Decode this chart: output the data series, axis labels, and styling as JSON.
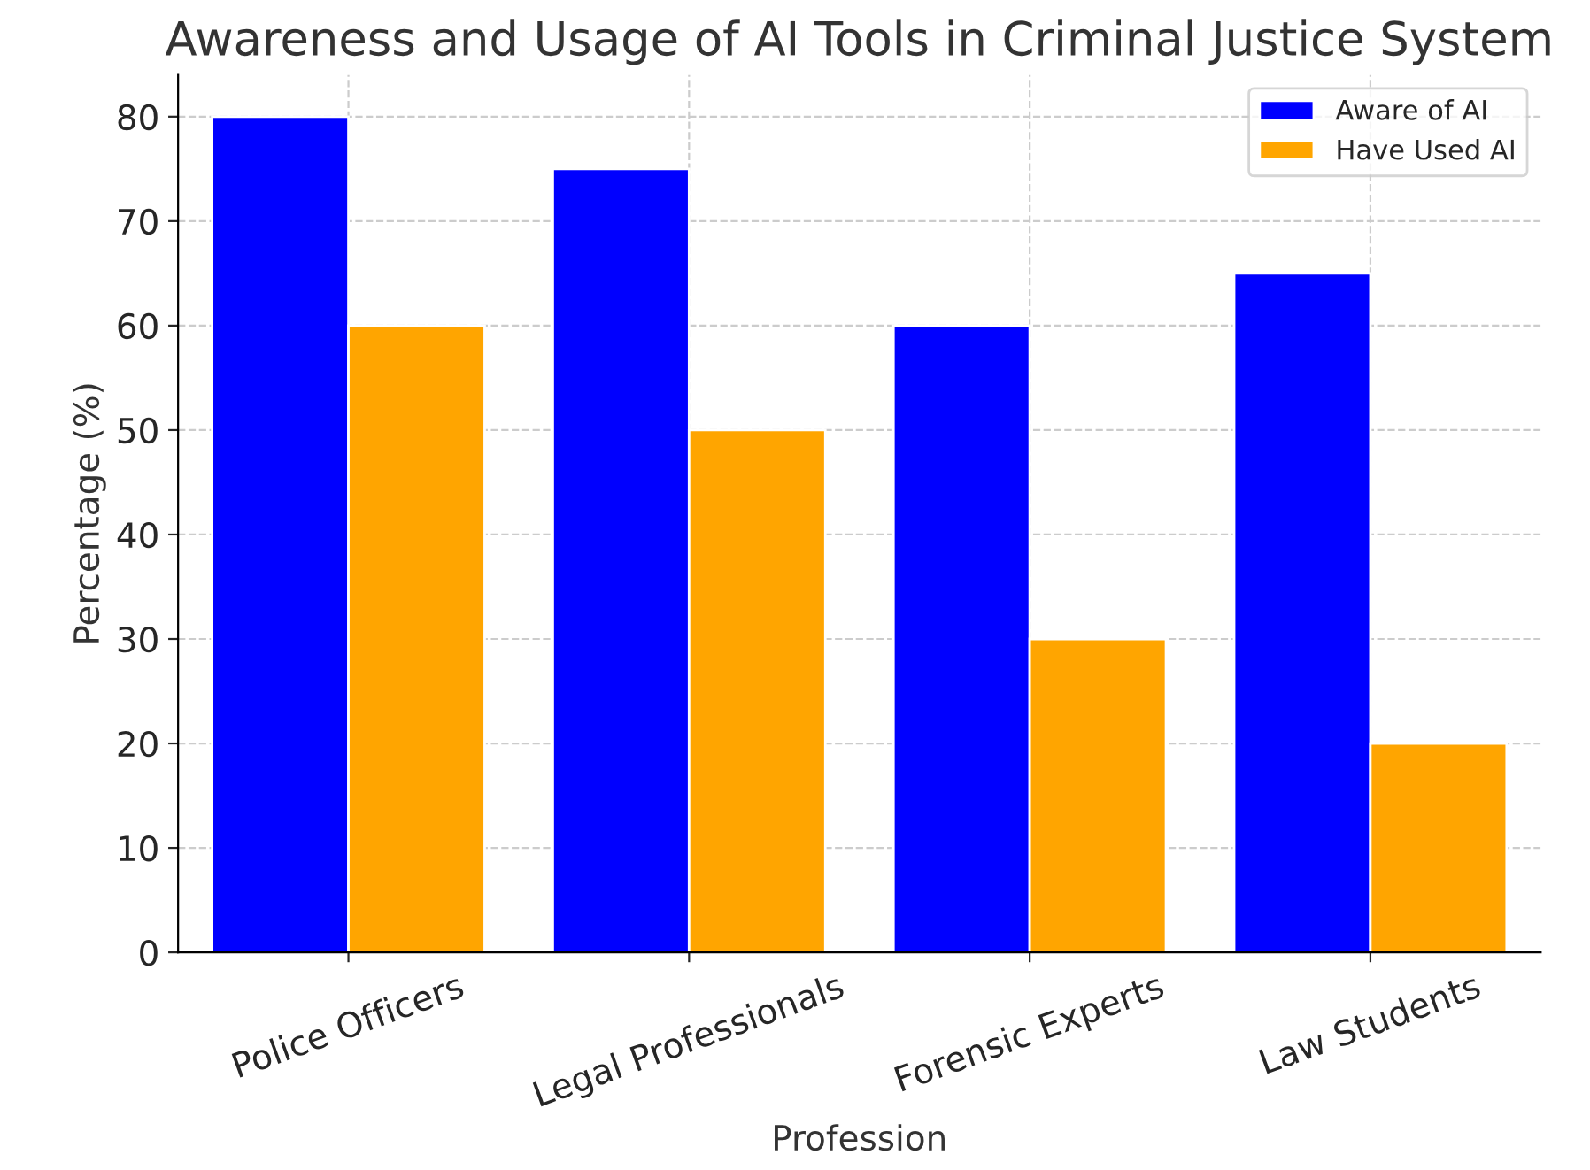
{
  "chart_data": {
    "type": "bar",
    "title": "Awareness and Usage of AI Tools in Criminal Justice System",
    "xlabel": "Profession",
    "ylabel": "Percentage (%)",
    "categories": [
      "Police Officers",
      "Legal Professionals",
      "Forensic Experts",
      "Law Students"
    ],
    "series": [
      {
        "name": "Aware of AI",
        "color": "#0000ff",
        "values": [
          80,
          75,
          60,
          65
        ]
      },
      {
        "name": "Have Used AI",
        "color": "#ffa500",
        "values": [
          60,
          50,
          30,
          20
        ]
      }
    ],
    "ylim": [
      0,
      84
    ],
    "yticks": [
      0,
      10,
      20,
      30,
      40,
      50,
      60,
      70,
      80
    ],
    "grid": true,
    "legend": "top right"
  }
}
